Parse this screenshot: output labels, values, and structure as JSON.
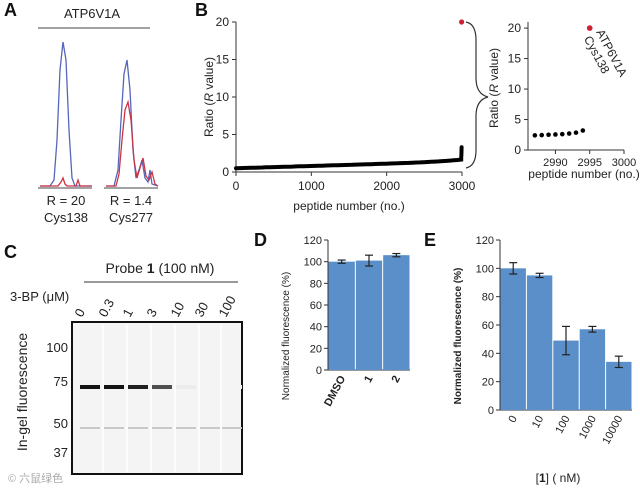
{
  "panel_labels": {
    "a": "A",
    "b": "B",
    "c": "C",
    "d": "D",
    "e": "E"
  },
  "chart_data": [
    {
      "panel": "A",
      "type": "line",
      "title": "ATP6V1A",
      "peaks": [
        {
          "name": "Cys138",
          "r_label": "R = 20",
          "ratio": 20
        },
        {
          "name": "Cys277",
          "r_label": "R = 1.4",
          "ratio": 1.4
        }
      ],
      "series_colors": {
        "light": "#5566bb",
        "heavy": "#cc3344"
      }
    },
    {
      "panel": "B",
      "type": "scatter",
      "xlabel": "peptide number (no.)",
      "ylabel_parts": [
        "Ratio (",
        "R",
        " value)"
      ],
      "xlim": [
        0,
        3000
      ],
      "ylim": [
        0,
        20
      ],
      "xticks": [
        "0",
        "1000",
        "2000",
        "3000"
      ],
      "yticks": [
        "0",
        "5",
        "10",
        "15",
        "20"
      ],
      "n_peptides": 2995,
      "outlier": {
        "x": 2995,
        "y": 20,
        "color": "#cc2233"
      },
      "inset": {
        "xlabel": "peptide number (no.)",
        "ylabel_parts": [
          "Ratio (",
          "R",
          " value)"
        ],
        "xlim": [
          2986,
          3000
        ],
        "ylim": [
          0,
          21
        ],
        "xticks": [
          "2990",
          "2995",
          "3000"
        ],
        "yticks": [
          "0",
          "5",
          "10",
          "15",
          "20"
        ],
        "points": [
          {
            "x": 2987,
            "y": 2.4
          },
          {
            "x": 2988,
            "y": 2.45
          },
          {
            "x": 2989,
            "y": 2.5
          },
          {
            "x": 2990,
            "y": 2.55
          },
          {
            "x": 2991,
            "y": 2.6
          },
          {
            "x": 2992,
            "y": 2.7
          },
          {
            "x": 2993,
            "y": 2.85
          },
          {
            "x": 2994,
            "y": 3.2
          },
          {
            "x": 2995,
            "y": 20.0
          }
        ],
        "annotation_lines": [
          "ATP6V1A",
          "Cys138"
        ]
      }
    },
    {
      "panel": "C",
      "type": "table",
      "title_parts": [
        "Probe ",
        "1",
        " (100 nM)"
      ],
      "row_label": "3-BP (μM)",
      "lanes": [
        "0",
        "0.3",
        "1",
        "3",
        "10",
        "30",
        "100"
      ],
      "ylabel": "In-gel fluorescence",
      "markers": [
        "100",
        "75",
        "50",
        "37"
      ],
      "band_intensity": [
        1.0,
        1.0,
        0.95,
        0.75,
        0.08,
        0.05,
        0.05
      ]
    },
    {
      "panel": "D",
      "type": "bar",
      "ylabel": "Normalized fluorescence (%)",
      "categories": [
        "DMSO",
        "1",
        "2"
      ],
      "values": [
        100,
        101,
        106
      ],
      "errors": [
        1.5,
        5,
        1.5
      ],
      "ylim": [
        0,
        120
      ],
      "yticks": [
        "0",
        "20",
        "40",
        "60",
        "80",
        "100",
        "120"
      ],
      "bar_color": "#5b8fc9"
    },
    {
      "panel": "E",
      "type": "bar",
      "ylabel": "Normalized fluorescence (%)",
      "categories": [
        "0",
        "10",
        "100",
        "1000",
        "10000"
      ],
      "values": [
        100,
        95,
        49,
        57,
        34
      ],
      "errors": [
        4,
        1.5,
        10,
        2,
        4
      ],
      "ylim": [
        0,
        120
      ],
      "yticks": [
        "0",
        "20",
        "40",
        "60",
        "80",
        "100",
        "120"
      ],
      "xlabel_parts": [
        "[",
        "1",
        "] ( nM)"
      ],
      "bar_color": "#5b8fc9"
    }
  ],
  "watermark": "© 六鼠绿色"
}
